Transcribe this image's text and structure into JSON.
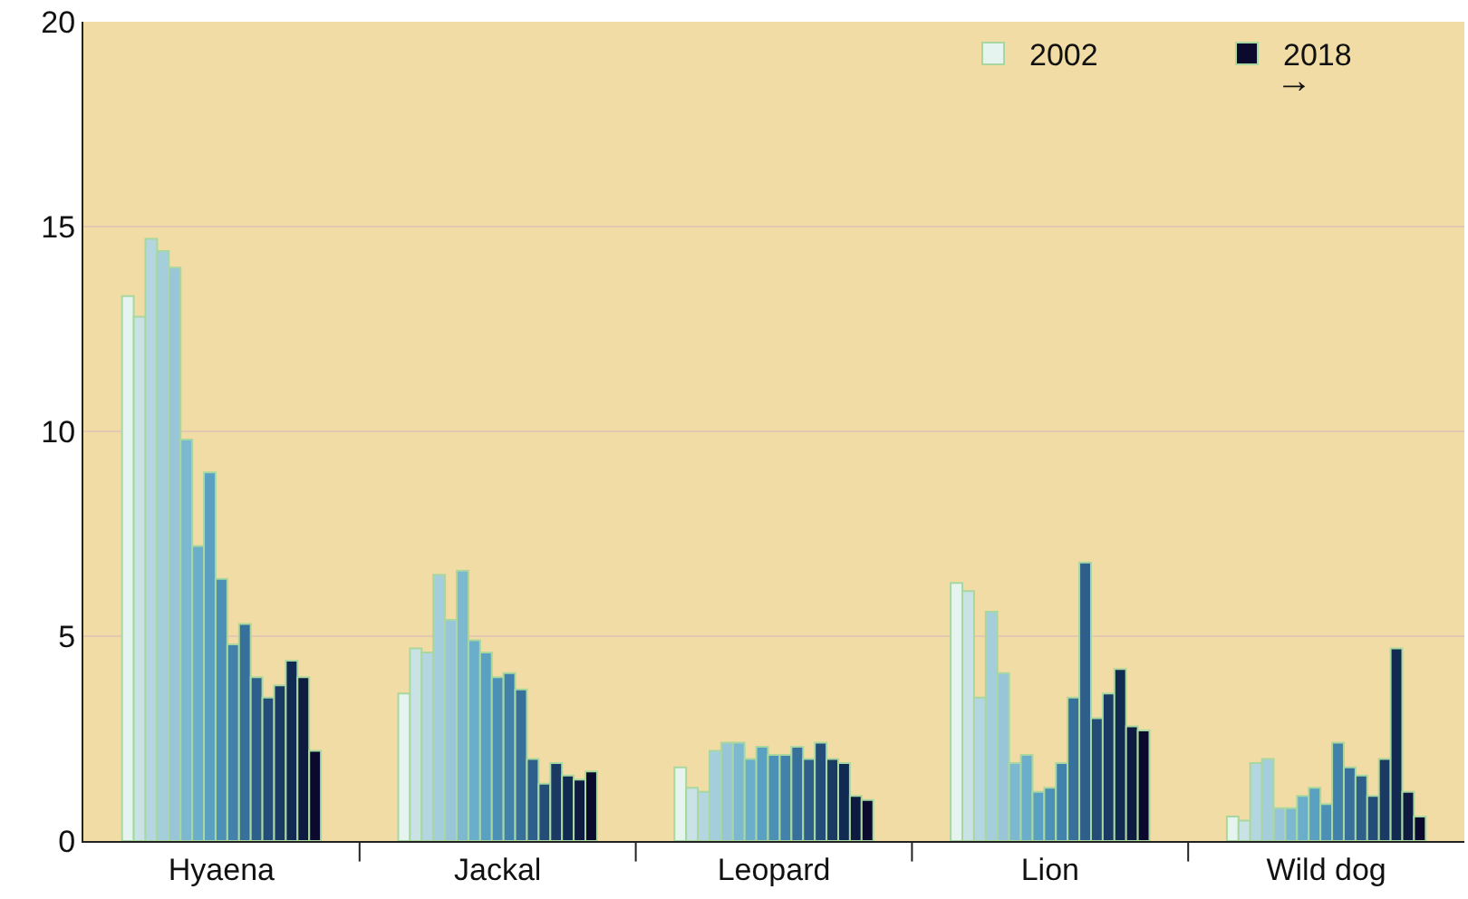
{
  "chart_data": {
    "type": "bar",
    "categories": [
      "Hyaena",
      "Jackal",
      "Leopard",
      "Lion",
      "Wild dog"
    ],
    "series": [
      {
        "name": "2002",
        "color": "#e6f4ef",
        "values": [
          13.3,
          3.6,
          1.8,
          6.3,
          0.6
        ]
      },
      {
        "color": "#c8e2e6",
        "values": [
          12.8,
          4.7,
          1.3,
          6.1,
          0.5
        ]
      },
      {
        "color": "#b4d6e0",
        "values": [
          14.7,
          4.6,
          1.2,
          3.5,
          1.9
        ]
      },
      {
        "color": "#a4cedc",
        "values": [
          14.4,
          6.5,
          2.2,
          5.6,
          2.0
        ]
      },
      {
        "color": "#98c6d8",
        "values": [
          14.0,
          5.4,
          2.4,
          4.1,
          0.8
        ]
      },
      {
        "color": "#7cb8cf",
        "values": [
          9.8,
          6.6,
          2.4,
          1.9,
          0.8
        ]
      },
      {
        "color": "#6aaecb",
        "values": [
          7.2,
          4.9,
          2.0,
          2.1,
          1.1
        ]
      },
      {
        "color": "#5aa0c2",
        "values": [
          9.0,
          4.6,
          2.3,
          1.2,
          1.3
        ]
      },
      {
        "color": "#4c90b6",
        "values": [
          6.4,
          4.0,
          2.1,
          1.3,
          0.9
        ]
      },
      {
        "color": "#4282aa",
        "values": [
          4.8,
          4.1,
          2.1,
          1.9,
          2.4
        ]
      },
      {
        "color": "#38709c",
        "values": [
          5.3,
          3.7,
          2.3,
          3.5,
          1.8
        ]
      },
      {
        "color": "#2e5e8a",
        "values": [
          4.0,
          2.0,
          2.0,
          6.8,
          1.6
        ]
      },
      {
        "color": "#234c78",
        "values": [
          3.5,
          1.4,
          2.4,
          3.0,
          1.1
        ]
      },
      {
        "color": "#1a3a64",
        "values": [
          3.8,
          1.9,
          2.0,
          3.6,
          2.0
        ]
      },
      {
        "color": "#112a52",
        "values": [
          4.4,
          1.6,
          1.9,
          4.2,
          4.7
        ]
      },
      {
        "color": "#0e1a40",
        "values": [
          4.0,
          1.5,
          1.1,
          2.8,
          1.2
        ]
      },
      {
        "name": "2018",
        "color": "#0b0a2e",
        "values": [
          2.2,
          1.7,
          1.0,
          2.7,
          0.6
        ]
      }
    ],
    "annotations": [
      "→"
    ],
    "ylim": [
      0,
      20
    ],
    "yticks": [
      0,
      5,
      10,
      15,
      20
    ],
    "grid": "y",
    "legend": "top right"
  }
}
